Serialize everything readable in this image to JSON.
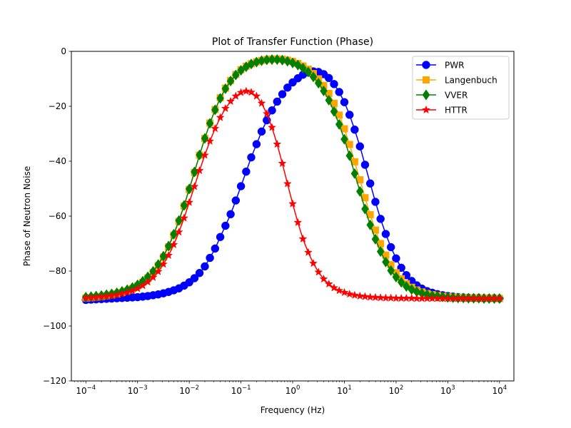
{
  "chart_data": {
    "type": "line",
    "title": "Plot of Transfer Function (Phase)",
    "xlabel": "Frequency (Hz)",
    "ylabel": "Phase of Neutron Noise",
    "xscale": "log",
    "xlim": [
      5.25e-05,
      19000
    ],
    "ylim": [
      -120,
      0
    ],
    "x_ticks": [
      0.0001,
      0.001,
      0.01,
      0.1,
      1,
      10,
      100,
      1000,
      10000
    ],
    "x_tick_base": "10",
    "x_tick_exponents": [
      "−4",
      "−3",
      "−2",
      "−1",
      "0",
      "1",
      "2",
      "3",
      "4"
    ],
    "y_ticks": [
      0,
      -20,
      -40,
      -60,
      -80,
      -100,
      -120
    ],
    "y_tick_labels": [
      "0",
      "−20",
      "−40",
      "−60",
      "−80",
      "−100",
      "−120"
    ],
    "grid": false,
    "legend_position": "top-right",
    "x": [
      0.0001,
      0.000126,
      0.000158,
      0.0002,
      0.000251,
      0.000316,
      0.000398,
      0.000501,
      0.000631,
      0.000794,
      0.001,
      0.00126,
      0.00158,
      0.002,
      0.00251,
      0.00316,
      0.00398,
      0.00501,
      0.00631,
      0.00794,
      0.01,
      0.0126,
      0.0158,
      0.02,
      0.0251,
      0.0316,
      0.0398,
      0.0501,
      0.0631,
      0.0794,
      0.1,
      0.126,
      0.158,
      0.2,
      0.251,
      0.316,
      0.398,
      0.501,
      0.631,
      0.794,
      1,
      1.26,
      1.58,
      2,
      2.51,
      3.16,
      3.98,
      5.01,
      6.31,
      7.94,
      10,
      12.6,
      15.8,
      20,
      25.1,
      31.6,
      39.8,
      50.1,
      63.1,
      79.4,
      100,
      126,
      158,
      200,
      251,
      316,
      398,
      501,
      631,
      794,
      1000,
      1260,
      1580,
      2000,
      2510,
      3160,
      3980,
      5010,
      6310,
      7940,
      10000
    ],
    "series": [
      {
        "name": "PWR",
        "color": "#0000ff",
        "marker": "circle",
        "values": [
          -90.5,
          -90.4,
          -90.3,
          -90.2,
          -90.1,
          -90,
          -89.9,
          -89.8,
          -89.7,
          -89.6,
          -89.5,
          -89.3,
          -89.1,
          -88.8,
          -88.5,
          -88.1,
          -87.6,
          -87,
          -86.3,
          -85.3,
          -84.1,
          -82.6,
          -80.7,
          -78.3,
          -75.2,
          -71.8,
          -67.6,
          -63.5,
          -59.3,
          -54.3,
          -49.1,
          -43.8,
          -38.6,
          -33.8,
          -29.2,
          -25.1,
          -21.5,
          -18.3,
          -15.6,
          -13.2,
          -11.3,
          -9.8,
          -8.5,
          -7.7,
          -7.3,
          -7.5,
          -8.3,
          -9.7,
          -11.9,
          -14.8,
          -18.5,
          -23.1,
          -28.5,
          -34.6,
          -41.3,
          -48.1,
          -54.8,
          -61,
          -66.5,
          -71.3,
          -75.4,
          -78.8,
          -81.5,
          -83.6,
          -85.2,
          -86.4,
          -87.3,
          -87.9,
          -88.4,
          -88.8,
          -89.1,
          -89.3,
          -89.5,
          -89.6,
          -89.7,
          -89.8,
          -89.8,
          -89.9,
          -89.9,
          -89.9,
          -90
        ]
      },
      {
        "name": "Langenbuch",
        "color": "#ffa500",
        "marker": "square",
        "values": [
          -89.8,
          -89.7,
          -89.5,
          -89.3,
          -89,
          -88.7,
          -88.3,
          -87.8,
          -87.2,
          -86.4,
          -85.4,
          -84.1,
          -82.5,
          -80.5,
          -78,
          -74.9,
          -71.2,
          -66.9,
          -61.9,
          -56.3,
          -50.3,
          -44.1,
          -37.8,
          -31.7,
          -26.1,
          -21.2,
          -16.9,
          -13.4,
          -10.6,
          -8.4,
          -6.7,
          -5.4,
          -4.5,
          -3.8,
          -3.3,
          -3,
          -2.8,
          -2.8,
          -2.9,
          -3.2,
          -3.7,
          -4.4,
          -5.3,
          -6.5,
          -8.1,
          -10,
          -12.4,
          -15.3,
          -18.9,
          -23.2,
          -28.2,
          -33.9,
          -40.2,
          -46.8,
          -53.3,
          -59.5,
          -65.1,
          -70,
          -74.2,
          -77.7,
          -80.6,
          -82.8,
          -84.6,
          -85.9,
          -86.9,
          -87.6,
          -88.2,
          -88.6,
          -88.9,
          -89.2,
          -89.4,
          -89.5,
          -89.6,
          -89.7,
          -89.8,
          -89.8,
          -89.9,
          -89.9,
          -89.9,
          -90,
          -90
        ]
      },
      {
        "name": "VVER",
        "color": "#008000",
        "marker": "diamond",
        "values": [
          -89.5,
          -89.3,
          -89.1,
          -88.9,
          -88.6,
          -88.3,
          -87.9,
          -87.4,
          -86.8,
          -86,
          -85,
          -83.7,
          -82.1,
          -80.1,
          -77.6,
          -74.6,
          -70.9,
          -66.6,
          -61.6,
          -56.1,
          -50.1,
          -43.9,
          -37.7,
          -31.7,
          -26.2,
          -21.3,
          -17.1,
          -13.6,
          -10.8,
          -8.6,
          -6.9,
          -5.6,
          -4.6,
          -3.9,
          -3.4,
          -3.1,
          -3,
          -3,
          -3.2,
          -3.6,
          -4.2,
          -5,
          -6.1,
          -7.5,
          -9.3,
          -11.6,
          -14.4,
          -17.8,
          -21.9,
          -26.6,
          -32,
          -38,
          -44.5,
          -51,
          -57.4,
          -63.2,
          -68.4,
          -72.9,
          -76.7,
          -79.8,
          -82.2,
          -84.1,
          -85.6,
          -86.7,
          -87.5,
          -88.1,
          -88.6,
          -89,
          -89.2,
          -89.4,
          -89.6,
          -89.7,
          -89.8,
          -89.8,
          -89.9,
          -89.9,
          -89.9,
          -90,
          -90,
          -90,
          -90
        ]
      },
      {
        "name": "HTTR",
        "color": "#ff0000",
        "marker": "star",
        "values": [
          -89.8,
          -89.7,
          -89.6,
          -89.4,
          -89.2,
          -89,
          -88.7,
          -88.3,
          -87.8,
          -87.2,
          -86.4,
          -85.3,
          -84,
          -82.3,
          -80.2,
          -77.5,
          -74.3,
          -70.4,
          -65.8,
          -60.7,
          -55,
          -49.2,
          -43.4,
          -37.8,
          -32.7,
          -28.1,
          -24.1,
          -20.8,
          -18.2,
          -16.3,
          -15,
          -14.5,
          -14.9,
          -16.3,
          -18.9,
          -22.7,
          -27.7,
          -33.8,
          -40.8,
          -48.2,
          -55.5,
          -62.3,
          -68.3,
          -73.2,
          -77.2,
          -80.4,
          -82.9,
          -84.7,
          -86.1,
          -87.1,
          -87.8,
          -88.4,
          -88.8,
          -89.1,
          -89.3,
          -89.5,
          -89.6,
          -89.7,
          -89.8,
          -89.8,
          -89.9,
          -89.9,
          -89.9,
          -89.9,
          -90,
          -90,
          -90,
          -90,
          -90,
          -90,
          -90,
          -90,
          -90,
          -90,
          -90,
          -90,
          -90,
          -90,
          -90,
          -90,
          -90
        ]
      }
    ]
  }
}
